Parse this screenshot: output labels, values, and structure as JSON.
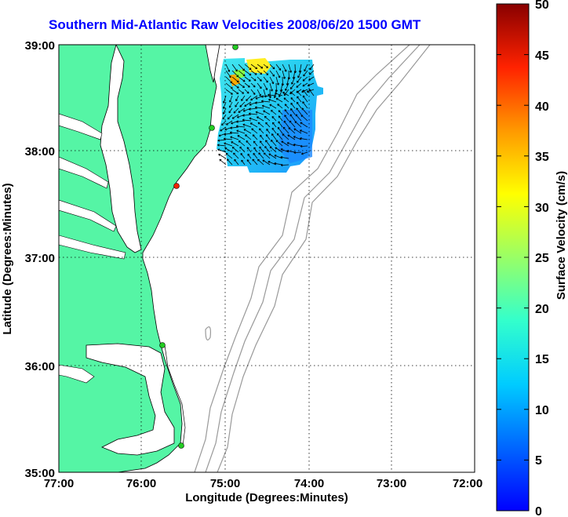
{
  "title": "Southern Mid-Atlantic Raw Velocities 2008/06/20 1500 GMT",
  "x_axis": {
    "label": "Longitude (Degrees:Minutes)",
    "ticks": [
      "77:00",
      "76:00",
      "75:00",
      "74:00",
      "73:00",
      "72:00"
    ]
  },
  "y_axis": {
    "label": "Latitude (Degrees:Minutes)",
    "ticks": [
      "39:00",
      "38:00",
      "37:00",
      "36:00",
      "35:00"
    ]
  },
  "colorbar": {
    "label": "Surface Velocity (cm/s)",
    "ticks": [
      "50",
      "45",
      "40",
      "35",
      "30",
      "25",
      "20",
      "15",
      "10",
      "5",
      "0"
    ],
    "min": 0,
    "max": 50
  },
  "colors": {
    "land": "#55f5a5",
    "coast": "#000000",
    "bathymetry": "#999999",
    "title": "#0000ff",
    "station_green": "#22cc22",
    "station_red": "#ee2200"
  }
}
